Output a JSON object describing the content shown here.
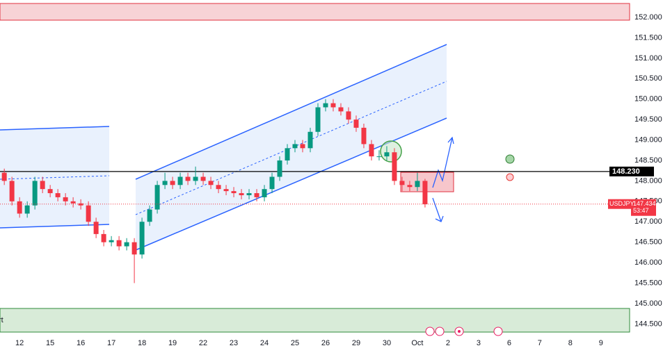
{
  "chart_data": {
    "type": "candlestick",
    "symbol": "USDJPY",
    "x": [
      -0.5,
      -0.25,
      0,
      0.25,
      0.5,
      0.75,
      1,
      1.25,
      1.5,
      1.75,
      2,
      2.25,
      2.5,
      2.75,
      3,
      3.25,
      3.5,
      3.75,
      4,
      4.25,
      4.5,
      4.75,
      5,
      5.25,
      5.5,
      5.75,
      6,
      6.25,
      6.5,
      6.75,
      7,
      7.25,
      7.5,
      7.75,
      8,
      8.25,
      8.5,
      8.75,
      9,
      9.25,
      9.5,
      9.75,
      10,
      10.25,
      10.5,
      10.75,
      11,
      11.25,
      11.5,
      11.75,
      12,
      12.25,
      12.5,
      12.75,
      13,
      13.25
    ],
    "open": [
      148.2,
      148.0,
      147.5,
      147.2,
      147.4,
      148.0,
      147.8,
      147.7,
      147.6,
      147.5,
      147.45,
      147.4,
      147.0,
      146.7,
      146.5,
      146.55,
      146.4,
      146.5,
      146.2,
      147.0,
      147.3,
      147.9,
      148.0,
      147.9,
      148.1,
      148.0,
      148.1,
      148.0,
      147.9,
      147.8,
      147.75,
      147.7,
      147.65,
      147.7,
      147.6,
      147.8,
      148.1,
      148.5,
      148.8,
      148.9,
      148.8,
      149.2,
      149.8,
      149.9,
      149.8,
      149.7,
      149.5,
      149.3,
      148.9,
      148.6,
      148.6,
      148.7,
      148.0,
      147.9,
      147.85,
      148.0
    ],
    "high": [
      148.3,
      148.1,
      147.6,
      147.5,
      148.1,
      148.1,
      147.9,
      147.8,
      147.7,
      147.6,
      147.55,
      147.5,
      147.1,
      146.8,
      146.65,
      146.65,
      146.6,
      146.6,
      147.1,
      147.4,
      148.0,
      148.2,
      148.1,
      148.2,
      148.2,
      148.35,
      148.2,
      148.1,
      148.0,
      147.9,
      147.85,
      147.8,
      147.8,
      147.8,
      147.9,
      148.2,
      148.6,
      148.9,
      149.0,
      149.0,
      149.3,
      149.9,
      150.0,
      150.0,
      149.9,
      149.8,
      149.6,
      149.4,
      149.0,
      148.75,
      148.85,
      148.8,
      148.1,
      148.0,
      148.2,
      148.05
    ],
    "low": [
      147.9,
      147.4,
      147.1,
      147.1,
      147.3,
      147.7,
      147.6,
      147.5,
      147.4,
      147.35,
      147.3,
      146.9,
      146.6,
      146.4,
      146.4,
      146.3,
      146.3,
      145.5,
      146.1,
      146.9,
      147.2,
      147.8,
      147.8,
      147.8,
      147.9,
      147.9,
      147.9,
      147.8,
      147.7,
      147.65,
      147.6,
      147.55,
      147.55,
      147.5,
      147.5,
      147.7,
      148.0,
      148.4,
      148.7,
      148.7,
      148.7,
      149.1,
      149.7,
      149.7,
      149.6,
      149.4,
      149.2,
      148.8,
      148.5,
      148.5,
      148.5,
      147.9,
      147.75,
      147.75,
      147.75,
      147.35
    ],
    "close": [
      148.0,
      147.5,
      147.2,
      147.4,
      148.0,
      147.8,
      147.7,
      147.6,
      147.5,
      147.45,
      147.4,
      147.0,
      146.7,
      146.5,
      146.55,
      146.4,
      146.5,
      146.2,
      147.0,
      147.3,
      147.9,
      148.0,
      147.9,
      148.1,
      148.0,
      148.1,
      148.0,
      147.9,
      147.8,
      147.75,
      147.7,
      147.65,
      147.7,
      147.6,
      147.8,
      148.1,
      148.5,
      148.8,
      148.9,
      148.8,
      149.2,
      149.8,
      149.9,
      149.8,
      149.7,
      149.5,
      149.3,
      148.9,
      148.6,
      148.6,
      148.7,
      148.0,
      147.9,
      147.85,
      148.0,
      147.43
    ],
    "up_color": "#089981",
    "down_color": "#f23645",
    "xlim": [
      -0.64,
      19.14
    ],
    "xticks": [
      {
        "value": 0,
        "label": "12"
      },
      {
        "value": 1,
        "label": "15"
      },
      {
        "value": 2,
        "label": "16"
      },
      {
        "value": 3,
        "label": "17"
      },
      {
        "value": 4,
        "label": "18"
      },
      {
        "value": 5,
        "label": "19"
      },
      {
        "value": 6,
        "label": "22"
      },
      {
        "value": 7,
        "label": "23"
      },
      {
        "value": 8,
        "label": "24"
      },
      {
        "value": 9,
        "label": "25"
      },
      {
        "value": 10,
        "label": "26"
      },
      {
        "value": 11,
        "label": "29"
      },
      {
        "value": 12,
        "label": "30"
      },
      {
        "value": 13,
        "label": "Oct"
      },
      {
        "value": 14,
        "label": "2"
      },
      {
        "value": 15,
        "label": "3"
      },
      {
        "value": 16,
        "label": "6"
      },
      {
        "value": 17,
        "label": "7"
      },
      {
        "value": 18,
        "label": "8"
      },
      {
        "value": 19,
        "label": "9"
      }
    ],
    "ylim": [
      144.2,
      152.34
    ],
    "yticks": [
      {
        "value": 152,
        "label": "152.000"
      },
      {
        "value": 151.5,
        "label": "151.500"
      },
      {
        "value": 151,
        "label": "151.000"
      },
      {
        "value": 150.5,
        "label": "150.500"
      },
      {
        "value": 150,
        "label": "150.000"
      },
      {
        "value": 149.5,
        "label": "149.500"
      },
      {
        "value": 149,
        "label": "149.000"
      },
      {
        "value": 148.5,
        "label": "148.500"
      },
      {
        "value": 148,
        "label": "148.000"
      },
      {
        "value": 147.5,
        "label": "147.500"
      },
      {
        "value": 147,
        "label": "147.000"
      },
      {
        "value": 146.5,
        "label": "146.500"
      },
      {
        "value": 146,
        "label": "146.000"
      },
      {
        "value": 145.5,
        "label": "145.500"
      },
      {
        "value": 145,
        "label": "145.000"
      },
      {
        "value": 144.5,
        "label": "144.500"
      }
    ],
    "level_line": {
      "value": 148.23,
      "label": "148.230"
    },
    "last_price": {
      "value": 147.434,
      "countdown": "53:47"
    },
    "cut_label": "rt"
  }
}
